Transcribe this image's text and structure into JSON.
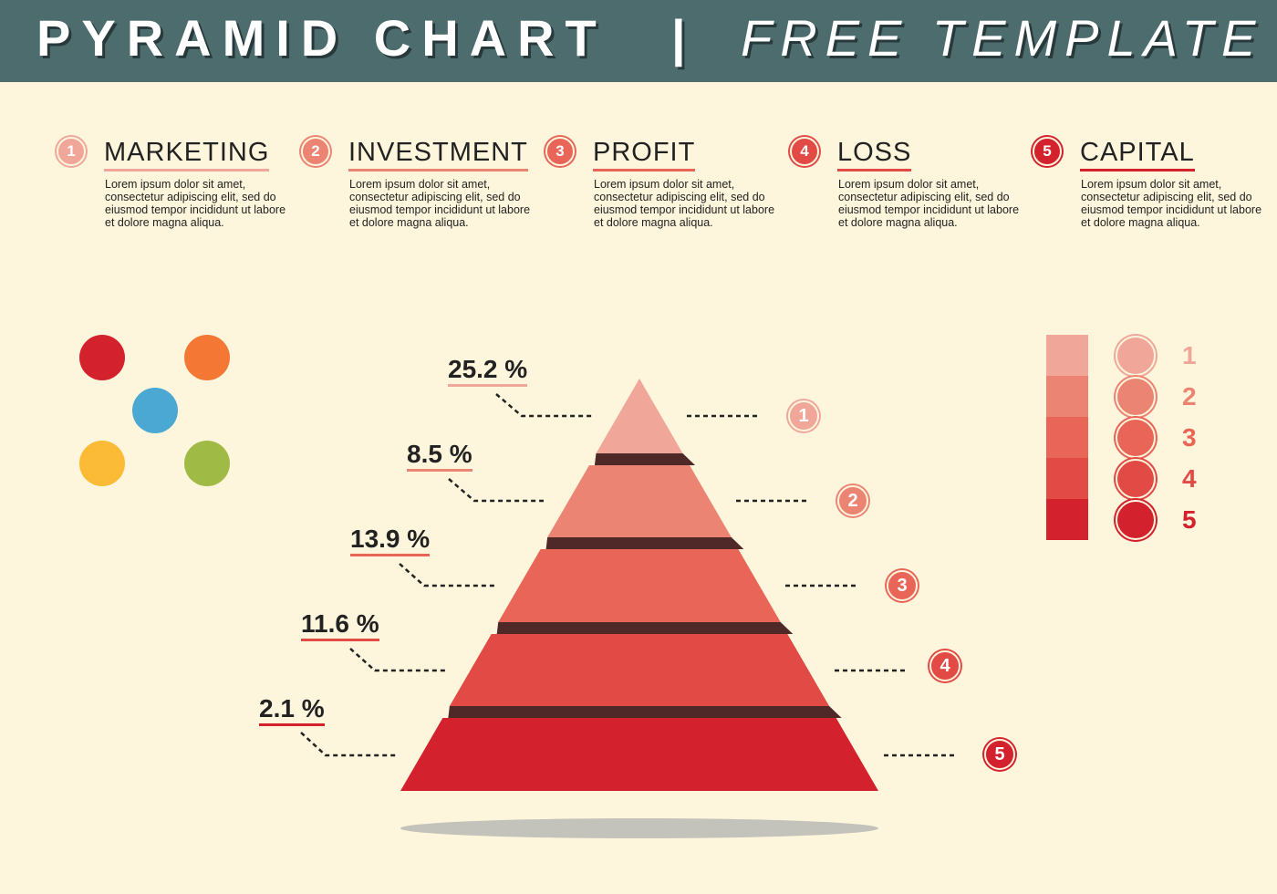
{
  "header": {
    "title": "PYRAMID CHART",
    "separator": "|",
    "subtitle": "FREE TEMPLATE"
  },
  "categories": [
    {
      "num": "1",
      "title": "MARKETING",
      "desc": "Lorem ipsum dolor sit amet, consectetur adipiscing elit, sed do eiusmod tempor incididunt ut labore et dolore magna aliqua.",
      "color": "#f0a79a"
    },
    {
      "num": "2",
      "title": "INVESTMENT",
      "desc": "Lorem ipsum dolor sit amet, consectetur adipiscing elit, sed do eiusmod tempor incididunt ut labore et dolore magna aliqua.",
      "color": "#ec8474"
    },
    {
      "num": "3",
      "title": "PROFIT",
      "desc": "Lorem ipsum dolor sit amet, consectetur adipiscing elit, sed do eiusmod tempor incididunt ut labore et dolore magna aliqua.",
      "color": "#e96558"
    },
    {
      "num": "4",
      "title": "LOSS",
      "desc": "Lorem ipsum dolor sit amet, consectetur adipiscing elit, sed do eiusmod tempor incididunt ut labore et dolore magna aliqua.",
      "color": "#e24a45"
    },
    {
      "num": "5",
      "title": "CAPITAL",
      "desc": "Lorem ipsum dolor sit amet, consectetur adipiscing elit, sed do eiusmod tempor incididunt ut labore et dolore magna aliqua.",
      "color": "#d3222e"
    }
  ],
  "palette": [
    "#d3222e",
    "#f47733",
    "#4ba8d3",
    "#fbbb37",
    "#a0bb45"
  ],
  "pyramid": {
    "levels": [
      {
        "num": "1",
        "percent": "25.2 %",
        "color": "#f0a79a"
      },
      {
        "num": "2",
        "percent": "8.5 %",
        "color": "#ec8474"
      },
      {
        "num": "3",
        "percent": "13.9 %",
        "color": "#e96558"
      },
      {
        "num": "4",
        "percent": "11.6 %",
        "color": "#e24a45"
      },
      {
        "num": "5",
        "percent": "2.1 %",
        "color": "#d3222e"
      }
    ],
    "separator_color": "#4f2828",
    "shadow_color": "#c3c2bb"
  },
  "legend": {
    "items": [
      {
        "num": "1",
        "color": "#f0a79a"
      },
      {
        "num": "2",
        "color": "#ec8474"
      },
      {
        "num": "3",
        "color": "#e96558"
      },
      {
        "num": "4",
        "color": "#e24a45"
      },
      {
        "num": "5",
        "color": "#d3222e"
      }
    ]
  }
}
